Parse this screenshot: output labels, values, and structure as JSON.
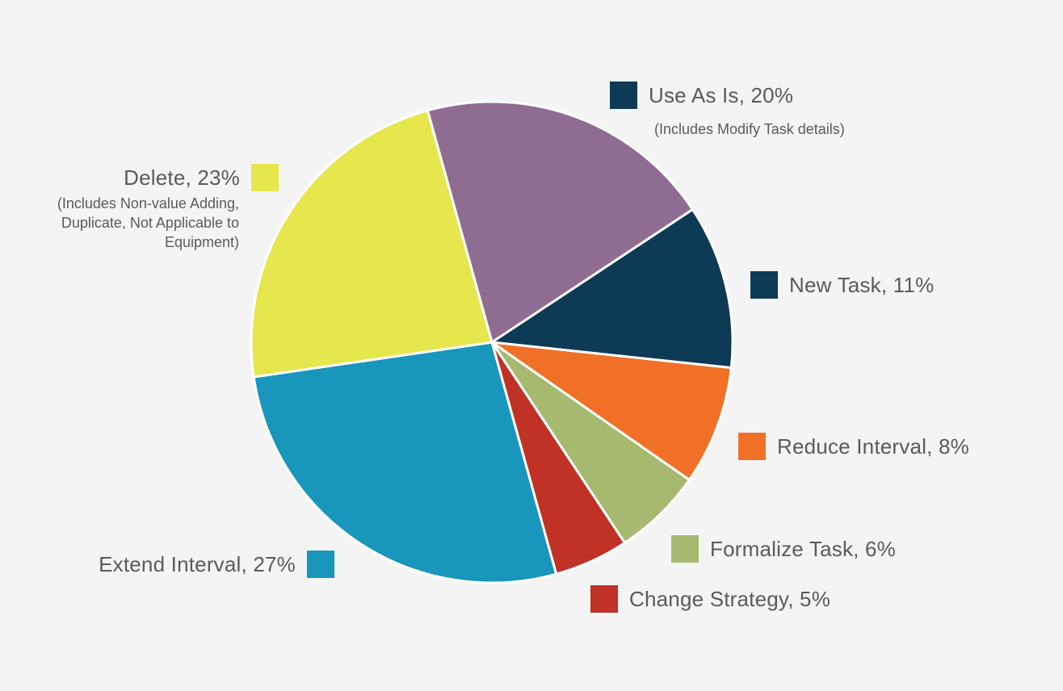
{
  "chart_data": {
    "type": "pie",
    "slices": [
      {
        "label": "Use As Is, 20%",
        "name": "Use As Is",
        "value": 20,
        "color": "#8f6d93",
        "note": "(Includes Modify Task details)"
      },
      {
        "label": "New Task, 11%",
        "name": "New Task",
        "value": 11,
        "color": "#0d3a55"
      },
      {
        "label": "Reduce Interval, 8%",
        "name": "Reduce Interval",
        "value": 8,
        "color": "#f07028"
      },
      {
        "label": "Formalize Task, 6%",
        "name": "Formalize Task",
        "value": 6,
        "color": "#a6b96e"
      },
      {
        "label": "Change Strategy, 5%",
        "name": "Change Strategy",
        "value": 5,
        "color": "#c03226"
      },
      {
        "label": "Extend Interval, 27%",
        "name": "Extend Interval",
        "value": 27,
        "color": "#1896bc"
      },
      {
        "label": "Delete, 23%",
        "name": "Delete",
        "value": 23,
        "color": "#e6e64d",
        "note": "(Includes Non-value Adding, Duplicate, Not Applicable to Equipment)"
      }
    ],
    "swatch_colors": {
      "use_as_is": "#0d3a55"
    }
  },
  "legend": {
    "use_as_is": "Use As Is, 20%",
    "use_as_is_note": "(Includes Modify Task details)",
    "new_task": "New Task, 11%",
    "reduce_interval": "Reduce Interval, 8%",
    "formalize_task": "Formalize Task, 6%",
    "change_strategy": "Change Strategy, 5%",
    "extend_interval": "Extend Interval, 27%",
    "delete": "Delete, 23%",
    "delete_note": "(Includes Non-value Adding, Duplicate, Not Applicable to Equipment)"
  }
}
